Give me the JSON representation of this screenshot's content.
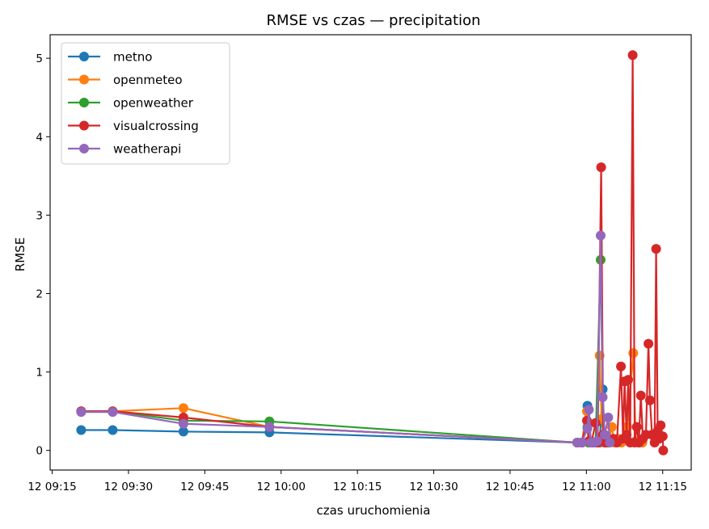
{
  "chart_data": {
    "type": "line",
    "title": "RMSE vs czas — precipitation",
    "xlabel": "czas uruchomienia",
    "ylabel": "RMSE",
    "x_tick_labels": [
      "12 09:15",
      "12 09:30",
      "12 09:45",
      "12 10:00",
      "12 10:15",
      "12 10:30",
      "12 10:45",
      "12 11:00",
      "12 11:15"
    ],
    "y_tick_labels": [
      "0",
      "1",
      "2",
      "3",
      "4",
      "5"
    ],
    "x_tick_minutes": [
      555,
      570,
      585,
      600,
      615,
      630,
      645,
      660,
      675
    ],
    "x_range_minutes": [
      554.6,
      680.6
    ],
    "ylim": [
      -0.25,
      5.3
    ],
    "grid": false,
    "legend_position": "upper left",
    "series": [
      {
        "name": "metno",
        "color": "#1f77b4",
        "points": [
          [
            560.7,
            0.26
          ],
          [
            566.9,
            0.26
          ],
          [
            580.8,
            0.24
          ],
          [
            597.7,
            0.23
          ],
          [
            658.2,
            0.1
          ],
          [
            659.1,
            0.1
          ],
          [
            660.2,
            0.57
          ],
          [
            660.5,
            0.1
          ],
          [
            661.0,
            0.1
          ],
          [
            661.8,
            0.1
          ],
          [
            662.6,
            0.1
          ],
          [
            663.2,
            0.78
          ],
          [
            663.6,
            0.12
          ],
          [
            664.3,
            0.1
          ]
        ]
      },
      {
        "name": "openmeteo",
        "color": "#ff7f0e",
        "points": [
          [
            560.7,
            0.5
          ],
          [
            566.9,
            0.5
          ],
          [
            580.8,
            0.54
          ],
          [
            597.7,
            0.3
          ],
          [
            658.2,
            0.1
          ],
          [
            659.1,
            0.1
          ],
          [
            660.1,
            0.5
          ],
          [
            660.4,
            0.1
          ],
          [
            661.0,
            0.1
          ],
          [
            662.1,
            0.1
          ],
          [
            662.6,
            1.21
          ],
          [
            663.0,
            0.4
          ],
          [
            663.5,
            0.1
          ],
          [
            664.3,
            0.1
          ],
          [
            665.0,
            0.3
          ],
          [
            665.5,
            0.1
          ],
          [
            666.2,
            0.15
          ],
          [
            666.9,
            0.1
          ],
          [
            668.0,
            0.3
          ],
          [
            669.2,
            1.24
          ],
          [
            669.7,
            0.12
          ],
          [
            670.3,
            0.1
          ],
          [
            671.0,
            0.1
          ]
        ]
      },
      {
        "name": "openweather",
        "color": "#2ca02c",
        "points": [
          [
            560.7,
            0.5
          ],
          [
            566.9,
            0.5
          ],
          [
            580.8,
            0.38
          ],
          [
            597.7,
            0.37
          ],
          [
            658.2,
            0.1
          ],
          [
            659.1,
            0.1
          ],
          [
            660.2,
            0.3
          ],
          [
            660.5,
            0.1
          ],
          [
            661.0,
            0.1
          ],
          [
            661.8,
            0.1
          ],
          [
            662.8,
            2.43
          ],
          [
            663.3,
            0.2
          ],
          [
            663.8,
            0.1
          ],
          [
            664.3,
            0.1
          ]
        ]
      },
      {
        "name": "visualcrossing",
        "color": "#d62728",
        "points": [
          [
            560.7,
            0.5
          ],
          [
            566.9,
            0.5
          ],
          [
            580.8,
            0.42
          ],
          [
            597.7,
            0.3
          ],
          [
            658.2,
            0.1
          ],
          [
            659.1,
            0.1
          ],
          [
            660.1,
            0.38
          ],
          [
            660.5,
            0.12
          ],
          [
            661.0,
            0.1
          ],
          [
            661.8,
            0.35
          ],
          [
            662.2,
            0.1
          ],
          [
            662.9,
            3.61
          ],
          [
            663.3,
            0.2
          ],
          [
            663.7,
            0.1
          ],
          [
            664.3,
            0.1
          ],
          [
            665.3,
            0.15
          ],
          [
            666.0,
            0.1
          ],
          [
            666.8,
            1.07
          ],
          [
            667.2,
            0.15
          ],
          [
            667.5,
            0.88
          ],
          [
            667.9,
            0.2
          ],
          [
            668.2,
            0.9
          ],
          [
            668.6,
            0.1
          ],
          [
            669.1,
            5.04
          ],
          [
            669.5,
            0.1
          ],
          [
            669.9,
            0.3
          ],
          [
            670.3,
            0.1
          ],
          [
            670.7,
            0.7
          ],
          [
            671.1,
            0.15
          ],
          [
            671.7,
            0.2
          ],
          [
            672.2,
            1.36
          ],
          [
            672.5,
            0.64
          ],
          [
            672.9,
            0.2
          ],
          [
            673.4,
            0.1
          ],
          [
            673.7,
            2.57
          ],
          [
            674.0,
            0.25
          ],
          [
            674.3,
            0.15
          ],
          [
            674.6,
            0.32
          ],
          [
            675.0,
            0.18
          ],
          [
            675.1,
            0.0
          ]
        ]
      },
      {
        "name": "weatherapi",
        "color": "#9467bd",
        "points": [
          [
            560.7,
            0.49
          ],
          [
            566.9,
            0.49
          ],
          [
            580.8,
            0.34
          ],
          [
            597.7,
            0.3
          ],
          [
            658.2,
            0.1
          ],
          [
            659.1,
            0.1
          ],
          [
            660.2,
            0.28
          ],
          [
            660.5,
            0.52
          ],
          [
            660.9,
            0.1
          ],
          [
            661.5,
            0.1
          ],
          [
            662.1,
            0.12
          ],
          [
            662.8,
            2.74
          ],
          [
            663.2,
            0.68
          ],
          [
            663.6,
            0.2
          ],
          [
            664.3,
            0.42
          ],
          [
            664.6,
            0.1
          ]
        ]
      }
    ]
  }
}
